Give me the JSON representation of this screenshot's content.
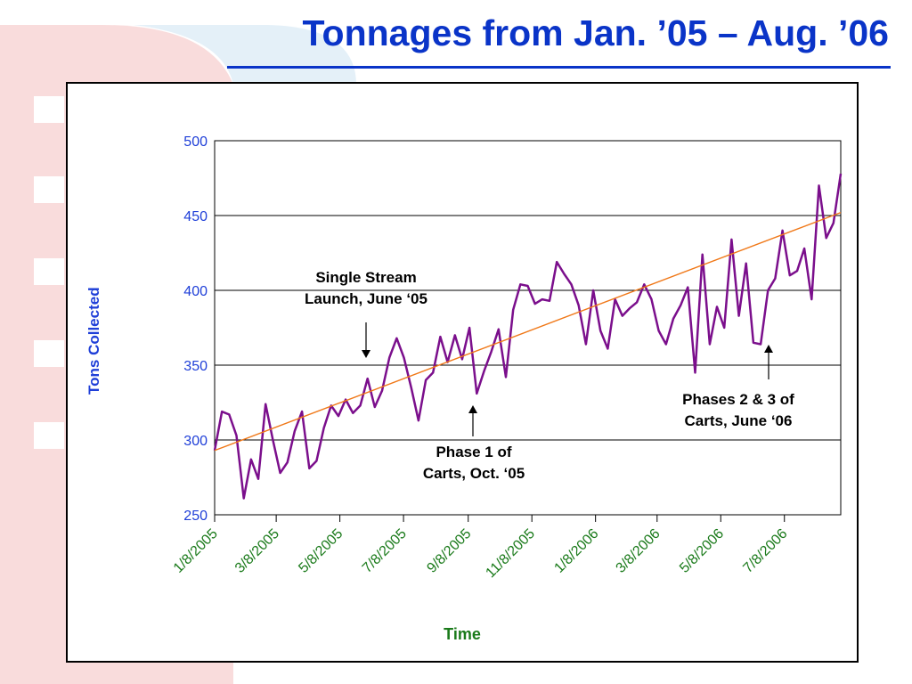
{
  "title": "Tonnages from Jan. ’05 – Aug. ’06",
  "colors": {
    "title": "#0a34c8",
    "series": "#7b0f8c",
    "trend": "#f07818",
    "ytick": "#1f3fd8",
    "xtick": "#1a7a1a"
  },
  "chart_data": {
    "type": "line",
    "ylabel": "Tons Collected",
    "xlabel": "Time",
    "ylim": [
      250,
      500
    ],
    "yticks": [
      250,
      300,
      350,
      400,
      450,
      500
    ],
    "x_start": "1/8/2005",
    "x_end": "8/31/2006",
    "x_tick_labels": [
      "1/8/2005",
      "3/8/2005",
      "5/8/2005",
      "7/8/2005",
      "9/8/2005",
      "11/8/2005",
      "1/8/2006",
      "3/8/2006",
      "5/8/2006",
      "7/8/2006"
    ],
    "grid": "horizontal",
    "series": [
      {
        "values": [
          293,
          319,
          317,
          303,
          261,
          287,
          274,
          324,
          300,
          278,
          285,
          306,
          319,
          281,
          286,
          308,
          323,
          316,
          327,
          318,
          323,
          341,
          322,
          333,
          355,
          368,
          355,
          335,
          313,
          340,
          345,
          369,
          352,
          370,
          354,
          375,
          331,
          346,
          359,
          374,
          342,
          387,
          404,
          403,
          391,
          394,
          393,
          419,
          411,
          404,
          390,
          364,
          400,
          373,
          361,
          394,
          383,
          388,
          392,
          404,
          394,
          373,
          364,
          381,
          390,
          402,
          345,
          424,
          364,
          389,
          375,
          434,
          383,
          418,
          365,
          364,
          400,
          408,
          440,
          410,
          413,
          428,
          394,
          470,
          435,
          445,
          478
        ]
      }
    ],
    "trendline": {
      "start": 293,
      "end": 452
    },
    "annotations": [
      {
        "lines": [
          "Single Stream",
          "Launch, June ‘05"
        ]
      },
      {
        "lines": [
          "Phase 1 of",
          "Carts, Oct. ‘05"
        ]
      },
      {
        "lines": [
          "Phases 2 & 3 of",
          "Carts, June ‘06"
        ]
      }
    ]
  }
}
